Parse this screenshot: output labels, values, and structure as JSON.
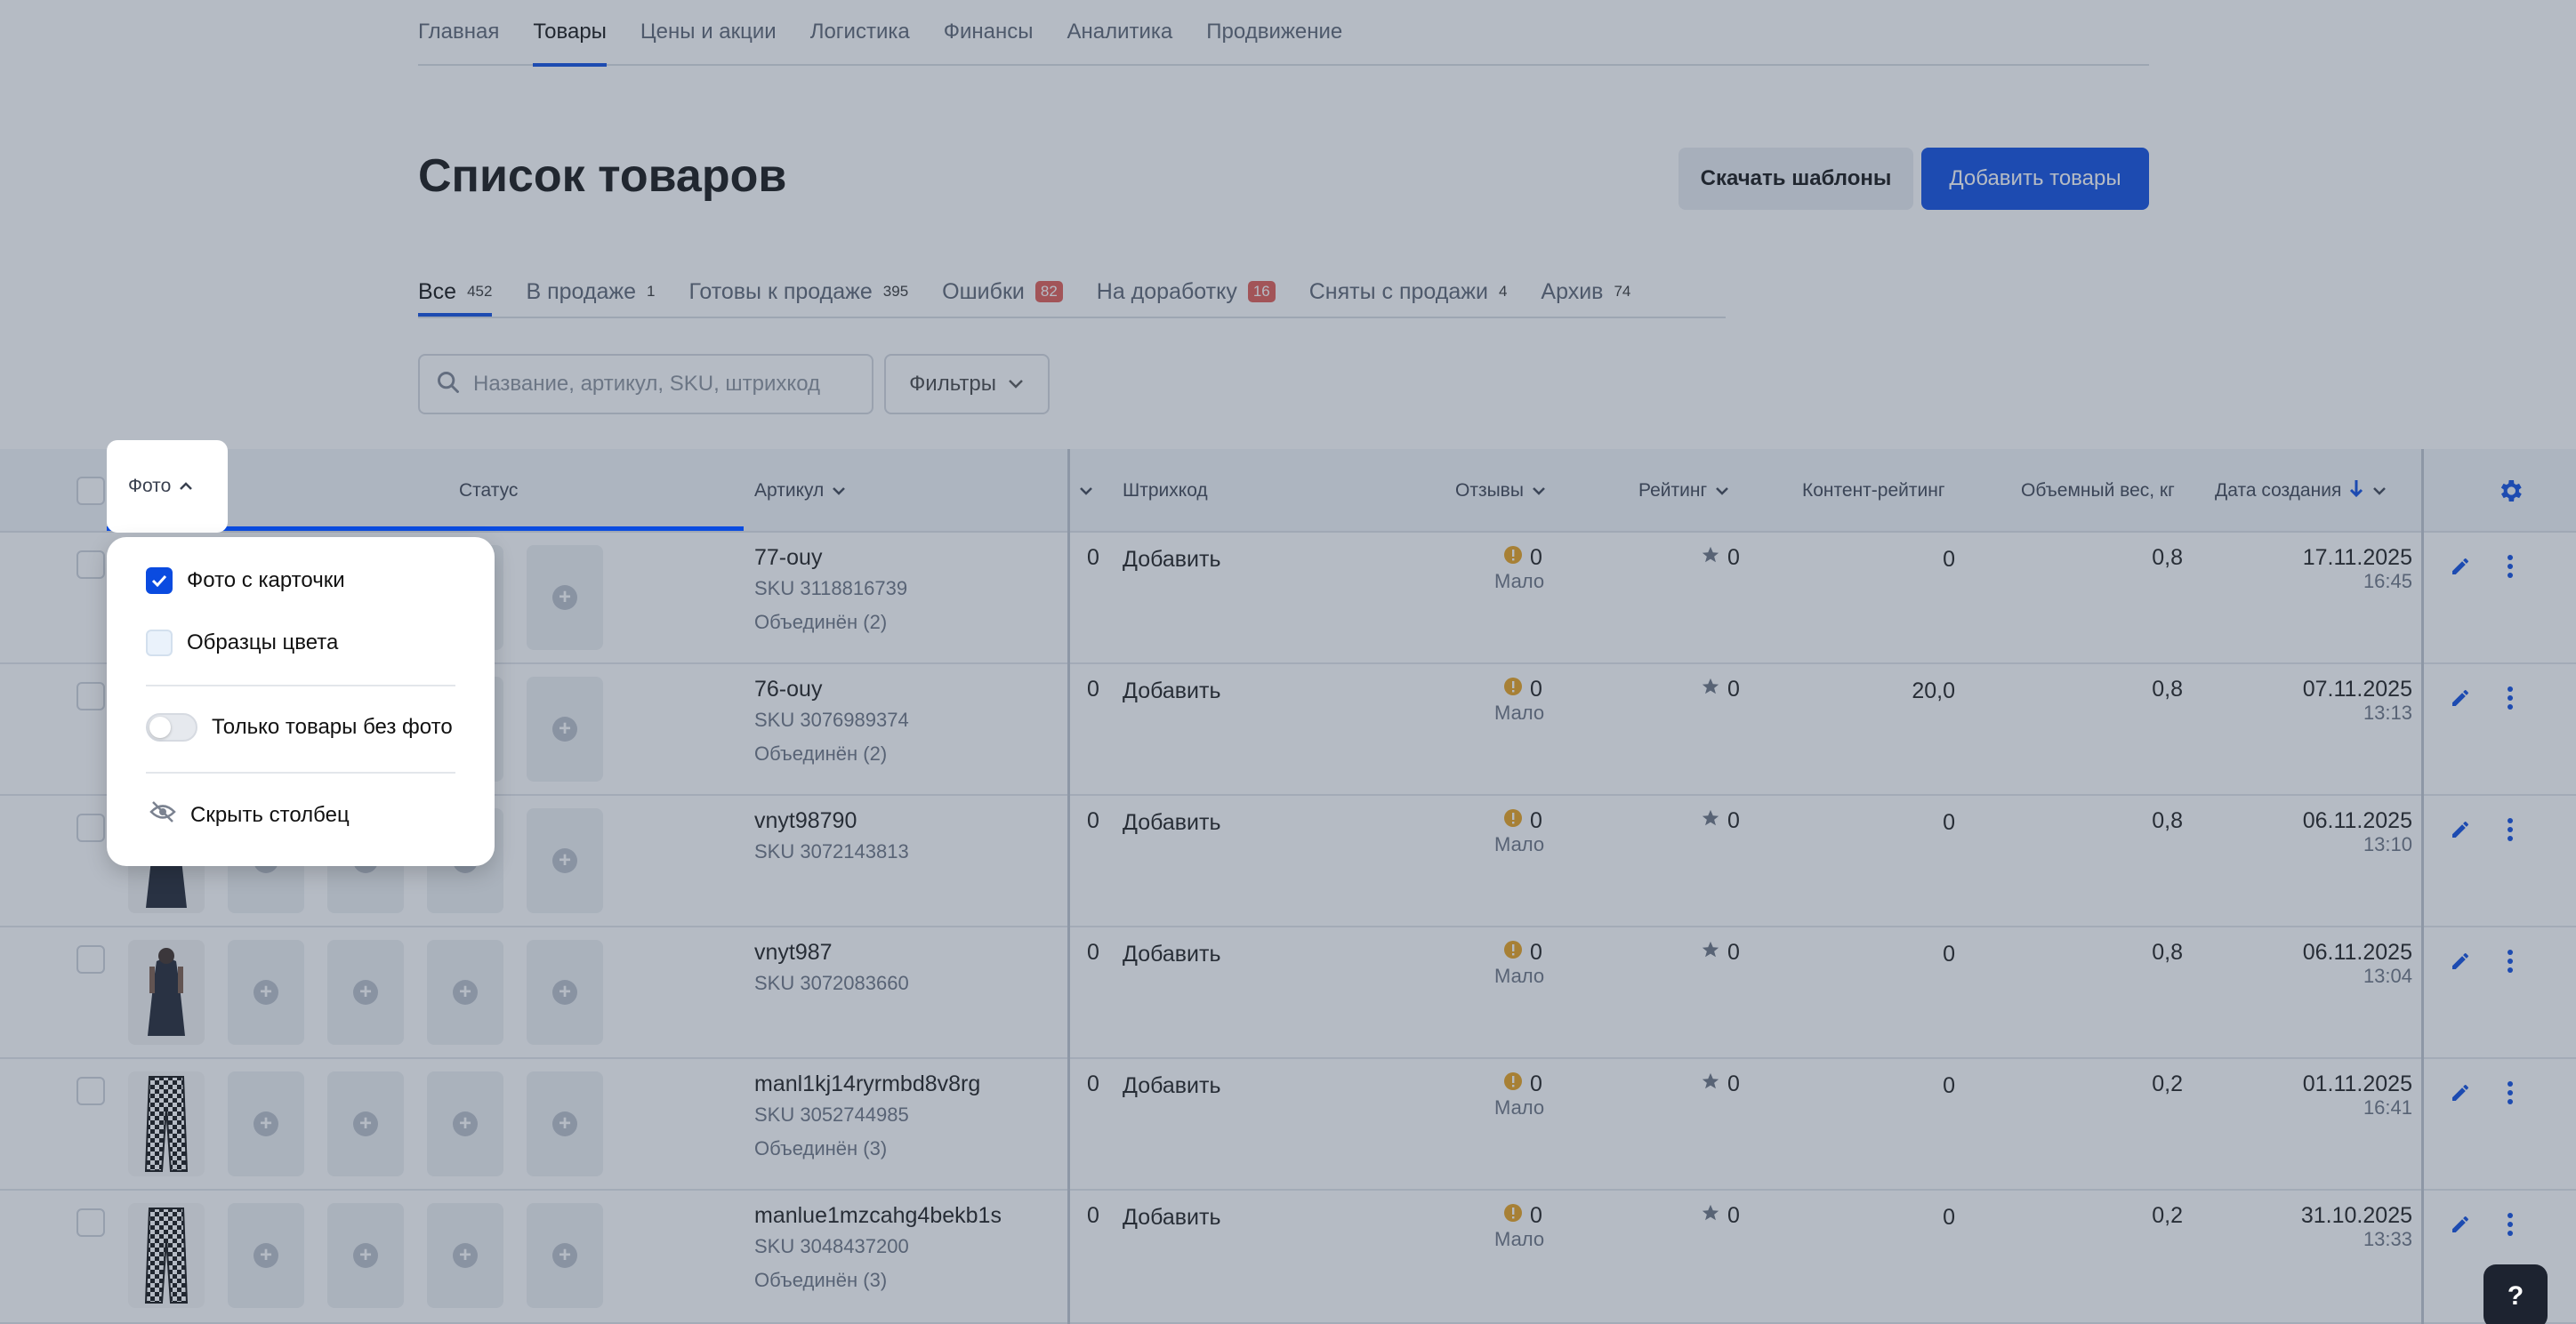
{
  "nav": [
    "Главная",
    "Товары",
    "Цены и акции",
    "Логистика",
    "Финансы",
    "Аналитика",
    "Продвижение"
  ],
  "title": "Список товаров",
  "buttons": {
    "download": "Скачать шаблоны",
    "add": "Добавить товары"
  },
  "tabs": [
    {
      "label": "Все",
      "count": "452"
    },
    {
      "label": "В продаже",
      "count": "1"
    },
    {
      "label": "Готовы к продаже",
      "count": "395"
    },
    {
      "label": "Ошибки",
      "count": "82"
    },
    {
      "label": "На доработку",
      "count": "16"
    },
    {
      "label": "Сняты с продажи",
      "count": "4"
    },
    {
      "label": "Архив",
      "count": "74"
    }
  ],
  "search": {
    "placeholder": "Название, артикул, SKU, штрихкод"
  },
  "filters": "Фильтры",
  "columns": {
    "photo": "Фото",
    "status": "Статус",
    "article": "Артикул",
    "barcode": "Штрихкод",
    "reviews": "Отзывы",
    "rating": "Рейтинг",
    "content_rating": "Контент-рейтинг",
    "volume_weight": "Объемный вес, кг",
    "created": "Дата создания"
  },
  "rows": [
    {
      "article": "77-ouy",
      "sku": "SKU 3118816739",
      "merged": "Объединён (2)",
      "qty": "0",
      "barcode": "Добавить",
      "reviews": "0",
      "reviews_note": "Мало",
      "rating": "0",
      "content": "0",
      "weight": "0,8",
      "date": "17.11.2025",
      "time": "16:45"
    },
    {
      "article": "76-ouy",
      "sku": "SKU 3076989374",
      "merged": "Объединён (2)",
      "qty": "0",
      "barcode": "Добавить",
      "reviews": "0",
      "reviews_note": "Мало",
      "rating": "0",
      "content": "20,0",
      "weight": "0,8",
      "date": "07.11.2025",
      "time": "13:13"
    },
    {
      "article": "vnyt98790",
      "sku": "SKU 3072143813",
      "merged": "",
      "qty": "0",
      "barcode": "Добавить",
      "reviews": "0",
      "reviews_note": "Мало",
      "rating": "0",
      "content": "0",
      "weight": "0,8",
      "date": "06.11.2025",
      "time": "13:10"
    },
    {
      "article": "vnyt987",
      "sku": "SKU 3072083660",
      "merged": "",
      "qty": "0",
      "barcode": "Добавить",
      "reviews": "0",
      "reviews_note": "Мало",
      "rating": "0",
      "content": "0",
      "weight": "0,8",
      "date": "06.11.2025",
      "time": "13:04"
    },
    {
      "article": "manl1kj14ryrmbd8v8rg",
      "sku": "SKU 3052744985",
      "merged": "Объединён (3)",
      "qty": "0",
      "barcode": "Добавить",
      "reviews": "0",
      "reviews_note": "Мало",
      "rating": "0",
      "content": "0",
      "weight": "0,2",
      "date": "01.11.2025",
      "time": "16:41"
    },
    {
      "article": "manlue1mzcahg4bekb1s",
      "sku": "SKU 3048437200",
      "merged": "Объединён (3)",
      "qty": "0",
      "barcode": "Добавить",
      "reviews": "0",
      "reviews_note": "Мало",
      "rating": "0",
      "content": "0",
      "weight": "0,2",
      "date": "31.10.2025",
      "time": "13:33"
    }
  ],
  "popup": {
    "opt_card_photo": "Фото с карточки",
    "opt_color_samples": "Образцы цвета",
    "opt_no_photo": "Только товары без фото",
    "opt_hide_column": "Скрыть столбец"
  },
  "help": "?"
}
